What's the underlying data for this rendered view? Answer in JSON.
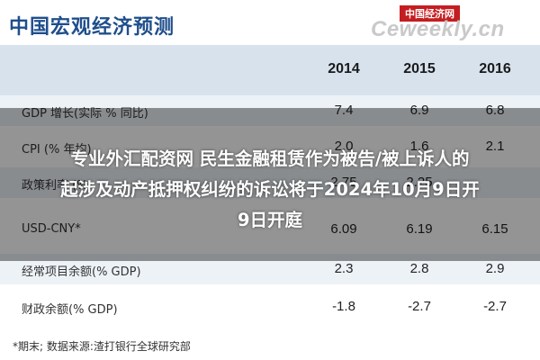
{
  "title": "中国宏观经济预测",
  "logo": {
    "badge": "中国经济网",
    "brand": "Ceweekly.cn"
  },
  "table": {
    "years": [
      "2014",
      "2015",
      "2016"
    ],
    "rows": [
      {
        "label": "GDP 增长(实际 % 同比)",
        "values": [
          "7.4",
          "6.9",
          "6.8"
        ]
      },
      {
        "label": "CPI (% 年均)",
        "values": [
          "2.0",
          "1.6",
          "2.1"
        ]
      },
      {
        "label": "政策利率 (%)",
        "values": [
          "2.75",
          "2.25",
          ""
        ]
      },
      {
        "label": "USD-CNY*",
        "values": [
          "6.09",
          "6.19",
          "6.15"
        ]
      },
      {
        "label": "经常项目余额(% GDP)",
        "values": [
          "2.3",
          "2.8",
          "2.9"
        ]
      },
      {
        "label": "财政余额(% GDP)",
        "values": [
          "-1.8",
          "-2.7",
          "-2.7"
        ]
      }
    ]
  },
  "footnote": "*期末;    数据来源:渣打银行全球研究部",
  "headline": {
    "line1": "专业外汇配资网 民生金融租赁作为被告/被上诉人的",
    "line2": "起涉及动产抵押权纠纷的诉讼将于2024年10月9日开",
    "line3": "9日开庭"
  }
}
